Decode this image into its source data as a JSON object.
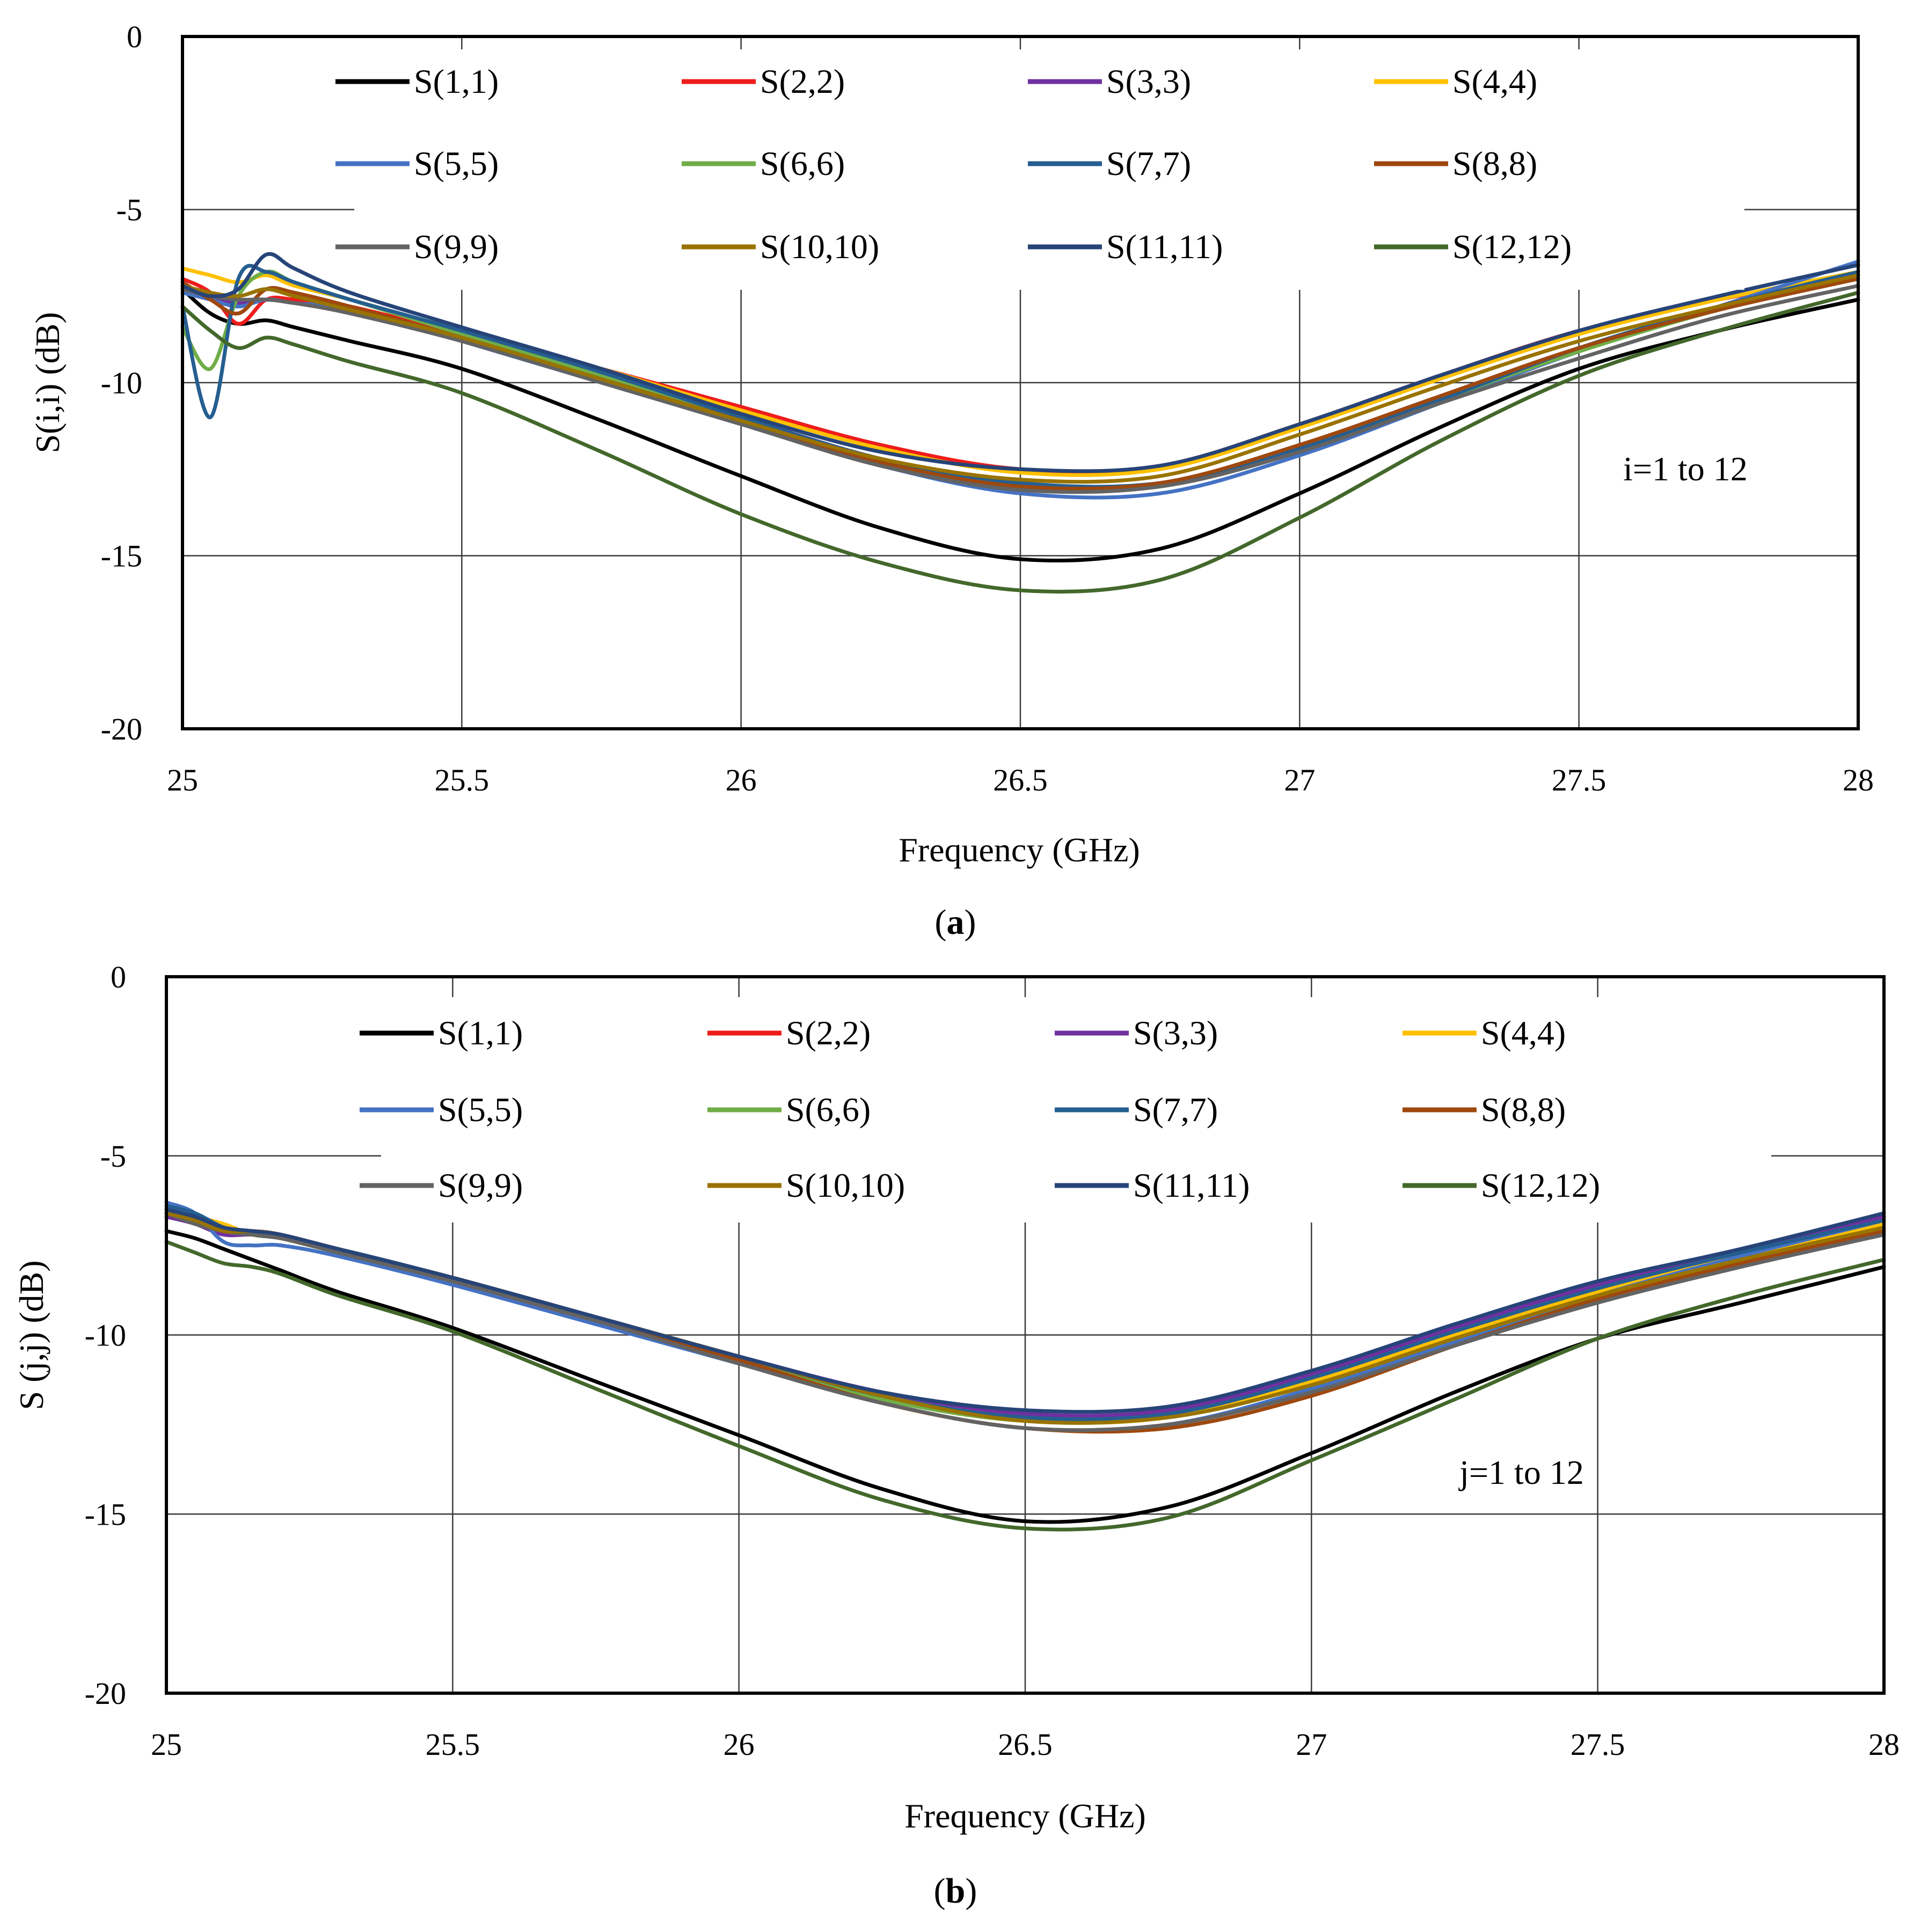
{
  "chart_data": [
    {
      "type": "line",
      "xlabel": "Frequency (GHz)",
      "ylabel": "S(i,i) (dB)",
      "xlim": [
        25,
        28
      ],
      "ylim": [
        -20,
        0
      ],
      "x_ticks": [
        "25",
        "25.5",
        "26",
        "26.5",
        "27",
        "27.5",
        "28"
      ],
      "y_ticks": [
        "0",
        "-5",
        "-10",
        "-15",
        "-20"
      ],
      "grid": true,
      "legend_position": "top",
      "annotation": "i=1 to 12",
      "caption": {
        "open": "(",
        "letter": "a",
        "close": ")"
      },
      "x": [
        25.0,
        25.05,
        25.1,
        25.15,
        25.2,
        25.3,
        25.5,
        25.75,
        26.0,
        26.25,
        26.5,
        26.75,
        27.0,
        27.25,
        27.5,
        27.75,
        28.0
      ],
      "series": [
        {
          "name": "S(1,1)",
          "color": "#000000",
          "values": [
            -7.3,
            -8.0,
            -8.3,
            -8.2,
            -8.4,
            -8.8,
            -9.6,
            -11.1,
            -12.7,
            -14.2,
            -15.1,
            -14.8,
            -13.2,
            -11.3,
            -9.6,
            -8.5,
            -7.6
          ]
        },
        {
          "name": "S(2,2)",
          "color": "#ee1c1c",
          "values": [
            -7.0,
            -7.4,
            -8.3,
            -7.6,
            -7.6,
            -7.8,
            -8.6,
            -9.6,
            -10.7,
            -11.8,
            -12.5,
            -12.4,
            -11.2,
            -9.8,
            -8.5,
            -7.6,
            -6.9
          ]
        },
        {
          "name": "S(3,3)",
          "color": "#7030a0",
          "values": [
            -7.2,
            -7.5,
            -7.7,
            -7.6,
            -7.7,
            -7.9,
            -8.7,
            -9.8,
            -11.0,
            -12.2,
            -12.9,
            -12.9,
            -11.8,
            -10.4,
            -9.0,
            -7.9,
            -6.9
          ]
        },
        {
          "name": "S(4,4)",
          "color": "#ffc000",
          "values": [
            -6.7,
            -6.9,
            -7.1,
            -6.9,
            -7.2,
            -7.6,
            -8.5,
            -9.6,
            -10.8,
            -11.9,
            -12.6,
            -12.5,
            -11.3,
            -9.9,
            -8.6,
            -7.6,
            -6.8
          ]
        },
        {
          "name": "S(5,5)",
          "color": "#4472c4",
          "values": [
            -7.4,
            -7.6,
            -7.8,
            -7.6,
            -7.7,
            -7.9,
            -8.8,
            -10.0,
            -11.2,
            -12.4,
            -13.2,
            -13.2,
            -12.1,
            -10.6,
            -9.1,
            -7.8,
            -6.5
          ]
        },
        {
          "name": "S(6,6)",
          "color": "#70ad47",
          "values": [
            -8.4,
            -9.6,
            -7.5,
            -6.8,
            -7.1,
            -7.6,
            -8.6,
            -9.8,
            -11.1,
            -12.3,
            -13.0,
            -13.0,
            -11.9,
            -10.5,
            -9.1,
            -7.9,
            -7.0
          ]
        },
        {
          "name": "S(7,7)",
          "color": "#255e91",
          "values": [
            -7.8,
            -11.0,
            -7.0,
            -6.8,
            -7.1,
            -7.6,
            -8.5,
            -9.7,
            -11.0,
            -12.2,
            -12.9,
            -12.9,
            -11.9,
            -10.5,
            -9.0,
            -7.8,
            -6.8
          ]
        },
        {
          "name": "S(8,8)",
          "color": "#9e480e",
          "values": [
            -7.1,
            -7.6,
            -8.0,
            -7.3,
            -7.4,
            -7.8,
            -8.7,
            -9.9,
            -11.1,
            -12.3,
            -13.0,
            -12.9,
            -11.8,
            -10.4,
            -9.0,
            -7.9,
            -7.0
          ]
        },
        {
          "name": "S(9,9)",
          "color": "#636363",
          "values": [
            -7.3,
            -7.5,
            -7.6,
            -7.6,
            -7.7,
            -8.0,
            -8.8,
            -10.0,
            -11.2,
            -12.4,
            -13.1,
            -13.0,
            -12.0,
            -10.6,
            -9.3,
            -8.1,
            -7.2
          ]
        },
        {
          "name": "S(10,10)",
          "color": "#997300",
          "values": [
            -7.2,
            -7.4,
            -7.5,
            -7.3,
            -7.5,
            -7.9,
            -8.7,
            -9.9,
            -11.1,
            -12.2,
            -12.8,
            -12.7,
            -11.5,
            -10.1,
            -8.8,
            -7.8,
            -6.9
          ]
        },
        {
          "name": "S(11,11)",
          "color": "#264478",
          "values": [
            -7.2,
            -7.5,
            -7.3,
            -6.3,
            -6.7,
            -7.4,
            -8.4,
            -9.6,
            -10.9,
            -12.0,
            -12.5,
            -12.4,
            -11.2,
            -9.8,
            -8.5,
            -7.5,
            -6.6
          ]
        },
        {
          "name": "S(12,12)",
          "color": "#43682b",
          "values": [
            -7.8,
            -8.5,
            -9.0,
            -8.7,
            -8.9,
            -9.4,
            -10.3,
            -12.0,
            -13.8,
            -15.2,
            -16.0,
            -15.7,
            -13.9,
            -11.7,
            -9.8,
            -8.5,
            -7.4
          ]
        }
      ]
    },
    {
      "type": "line",
      "xlabel": "Frequency (GHz)",
      "ylabel": "S (j,j) (dB)",
      "xlim": [
        25,
        28
      ],
      "ylim": [
        -20,
        0
      ],
      "x_ticks": [
        "25",
        "25.5",
        "26",
        "26.5",
        "27",
        "27.5",
        "28"
      ],
      "y_ticks": [
        "0",
        "-5",
        "-10",
        "-15",
        "-20"
      ],
      "grid": true,
      "legend_position": "top",
      "annotation": "j=1 to 12",
      "caption": {
        "open": "(",
        "letter": "b",
        "close": ")"
      },
      "x": [
        25.0,
        25.05,
        25.1,
        25.15,
        25.2,
        25.3,
        25.5,
        25.75,
        26.0,
        26.25,
        26.5,
        26.75,
        27.0,
        27.25,
        27.5,
        27.75,
        28.0
      ],
      "series": [
        {
          "name": "S(1,1)",
          "color": "#000000",
          "values": [
            -7.1,
            -7.3,
            -7.6,
            -7.9,
            -8.2,
            -8.8,
            -9.8,
            -11.3,
            -12.8,
            -14.3,
            -15.2,
            -14.8,
            -13.3,
            -11.6,
            -10.1,
            -9.1,
            -8.1
          ]
        },
        {
          "name": "S(2,2)",
          "color": "#ee1c1c",
          "values": [
            -6.6,
            -6.9,
            -7.1,
            -7.1,
            -7.2,
            -7.6,
            -8.4,
            -9.5,
            -10.6,
            -11.7,
            -12.3,
            -12.2,
            -11.2,
            -9.8,
            -8.6,
            -7.7,
            -6.9
          ]
        },
        {
          "name": "S(3,3)",
          "color": "#7030a0",
          "values": [
            -6.7,
            -6.9,
            -7.2,
            -7.2,
            -7.3,
            -7.7,
            -8.5,
            -9.5,
            -10.6,
            -11.6,
            -12.2,
            -12.1,
            -11.1,
            -9.8,
            -8.6,
            -7.6,
            -6.7
          ]
        },
        {
          "name": "S(4,4)",
          "color": "#ffc000",
          "values": [
            -6.5,
            -6.7,
            -6.9,
            -7.2,
            -7.3,
            -7.7,
            -8.5,
            -9.6,
            -10.7,
            -11.8,
            -12.4,
            -12.3,
            -11.3,
            -10.0,
            -8.8,
            -7.8,
            -6.9
          ]
        },
        {
          "name": "S(5,5)",
          "color": "#4472c4",
          "values": [
            -6.3,
            -6.6,
            -7.4,
            -7.5,
            -7.5,
            -7.8,
            -8.6,
            -9.7,
            -10.8,
            -11.9,
            -12.6,
            -12.5,
            -11.5,
            -10.2,
            -8.9,
            -7.8,
            -6.8
          ]
        },
        {
          "name": "S(6,6)",
          "color": "#70ad47",
          "values": [
            -6.6,
            -6.8,
            -7.1,
            -7.2,
            -7.3,
            -7.7,
            -8.5,
            -9.6,
            -10.7,
            -11.8,
            -12.4,
            -12.3,
            -11.4,
            -10.1,
            -8.9,
            -7.9,
            -7.0
          ]
        },
        {
          "name": "S(7,7)",
          "color": "#255e91",
          "values": [
            -6.4,
            -6.6,
            -7.0,
            -7.2,
            -7.3,
            -7.6,
            -8.4,
            -9.5,
            -10.6,
            -11.7,
            -12.3,
            -12.2,
            -11.2,
            -9.9,
            -8.7,
            -7.7,
            -6.8
          ]
        },
        {
          "name": "S(8,8)",
          "color": "#9e480e",
          "values": [
            -6.6,
            -6.9,
            -7.1,
            -7.2,
            -7.3,
            -7.7,
            -8.5,
            -9.6,
            -10.7,
            -11.9,
            -12.6,
            -12.6,
            -11.7,
            -10.3,
            -9.0,
            -8.0,
            -7.1
          ]
        },
        {
          "name": "S(9,9)",
          "color": "#636363",
          "values": [
            -6.6,
            -6.9,
            -7.1,
            -7.2,
            -7.3,
            -7.7,
            -8.5,
            -9.6,
            -10.8,
            -11.9,
            -12.6,
            -12.5,
            -11.6,
            -10.3,
            -9.1,
            -8.1,
            -7.2
          ]
        },
        {
          "name": "S(10,10)",
          "color": "#997300",
          "values": [
            -6.6,
            -6.8,
            -7.1,
            -7.1,
            -7.2,
            -7.6,
            -8.4,
            -9.5,
            -10.6,
            -11.7,
            -12.4,
            -12.3,
            -11.4,
            -10.1,
            -8.9,
            -7.9,
            -7.0
          ]
        },
        {
          "name": "S(11,11)",
          "color": "#264478",
          "values": [
            -6.5,
            -6.7,
            -7.0,
            -7.1,
            -7.2,
            -7.6,
            -8.4,
            -9.5,
            -10.6,
            -11.6,
            -12.1,
            -12.0,
            -11.0,
            -9.7,
            -8.5,
            -7.6,
            -6.6
          ]
        },
        {
          "name": "S(12,12)",
          "color": "#43682b",
          "values": [
            -7.4,
            -7.7,
            -8.0,
            -8.1,
            -8.3,
            -8.9,
            -9.9,
            -11.5,
            -13.1,
            -14.6,
            -15.4,
            -15.1,
            -13.5,
            -11.8,
            -10.1,
            -8.9,
            -7.9
          ]
        }
      ]
    }
  ]
}
